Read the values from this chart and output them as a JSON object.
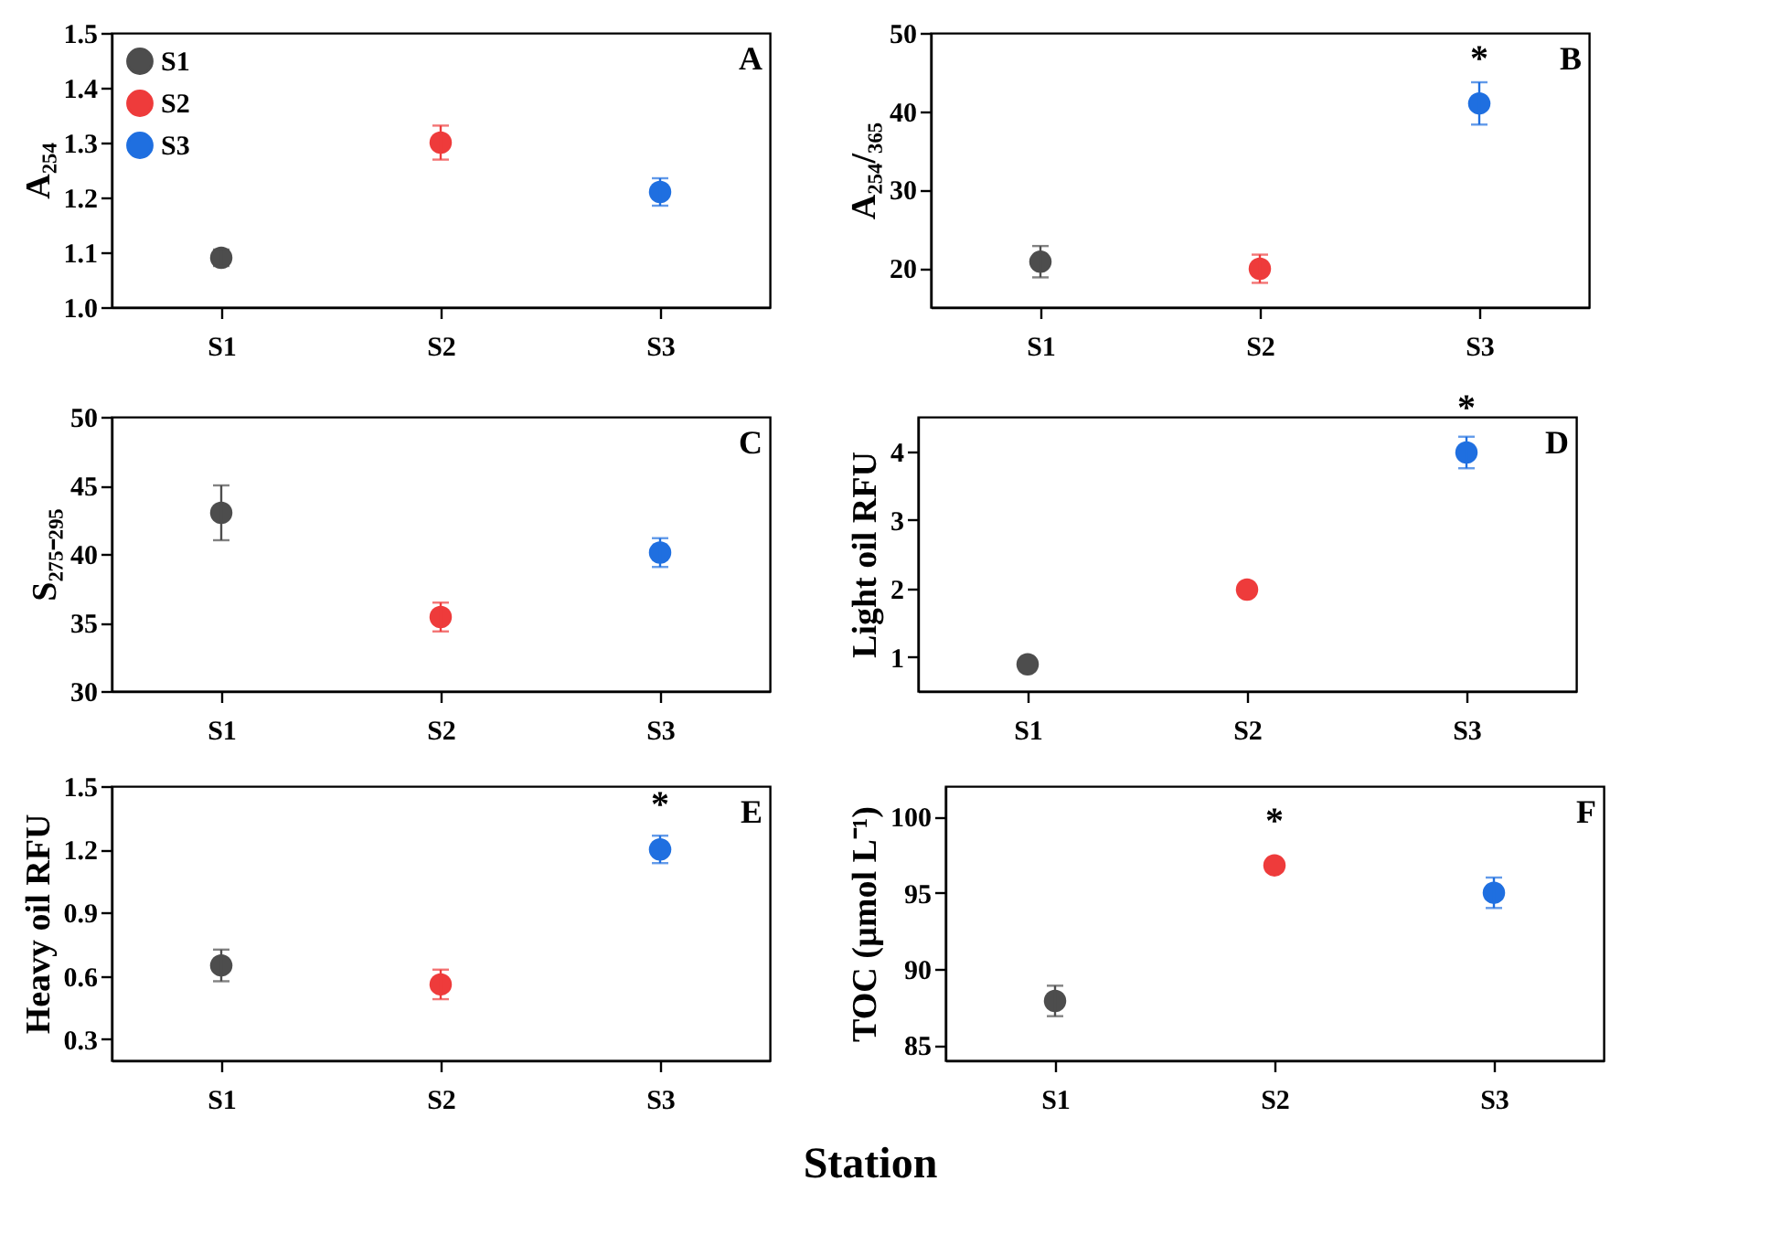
{
  "chart_data": [
    {
      "type": "scatter",
      "categories": [
        "S1",
        "S2",
        "S3"
      ],
      "ylabel": "A₂₅₄",
      "ylim": [
        1.0,
        1.5
      ],
      "yticks": [
        {
          "value": 1,
          "label": "1.0"
        },
        1.1,
        1.2,
        1.3,
        1.4,
        1.5
      ],
      "legend": "top left",
      "marker": "circle",
      "annotations": [
        "A"
      ],
      "series": [
        {
          "name": "S1",
          "color": "#4d4d4d",
          "values": [
            1.09,
            null,
            null
          ],
          "errors": [
            0.015,
            null,
            null
          ]
        },
        {
          "name": "S2",
          "color": "#ee3b3b",
          "values": [
            null,
            1.3,
            null
          ],
          "errors": [
            null,
            0.031,
            null
          ]
        },
        {
          "name": "S3",
          "color": "#1f6fe0",
          "values": [
            null,
            null,
            1.21
          ],
          "errors": [
            null,
            null,
            0.025
          ]
        }
      ]
    },
    {
      "type": "scatter",
      "categories": [
        "S1",
        "S2",
        "S3"
      ],
      "ylabel": "A₂₅₄/₃₆₅",
      "ylim": [
        15,
        50
      ],
      "yticks": [
        20,
        30,
        40,
        50
      ],
      "marker": "circle",
      "annotations": [
        "B",
        {
          "text": "*",
          "x": "S3",
          "y": 41.0
        }
      ],
      "series": [
        {
          "color": "#4d4d4d",
          "values": [
            20.8,
            null,
            null
          ],
          "errors": [
            2.0,
            null,
            null
          ]
        },
        {
          "color": "#ee3b3b",
          "values": [
            null,
            19.9,
            null
          ],
          "errors": [
            null,
            1.8,
            null
          ]
        },
        {
          "color": "#1f6fe0",
          "values": [
            null,
            null,
            41.0
          ],
          "errors": [
            null,
            null,
            2.7
          ]
        }
      ]
    },
    {
      "type": "scatter",
      "categories": [
        "S1",
        "S2",
        "S3"
      ],
      "ylabel": "S₂₇₅₋₂₉₅",
      "ylim": [
        30,
        50
      ],
      "yticks": [
        30,
        35,
        40,
        45,
        50
      ],
      "marker": "circle",
      "annotations": [
        "C"
      ],
      "series": [
        {
          "color": "#4d4d4d",
          "values": [
            43.0,
            null,
            null
          ],
          "errors": [
            2.0,
            null,
            null
          ]
        },
        {
          "color": "#ee3b3b",
          "values": [
            null,
            35.4,
            null
          ],
          "errors": [
            null,
            1.05,
            null
          ]
        },
        {
          "color": "#1f6fe0",
          "values": [
            null,
            null,
            40.1
          ],
          "errors": [
            null,
            null,
            1.05
          ]
        }
      ]
    },
    {
      "type": "scatter",
      "categories": [
        "S1",
        "S2",
        "S3"
      ],
      "ylabel": "Light oil RFU",
      "ylim": [
        0.5,
        4.5
      ],
      "yticks": [
        1,
        2,
        3,
        4
      ],
      "marker": "circle",
      "annotations": [
        "D",
        {
          "text": "*",
          "x": "S3",
          "y": 3.98
        }
      ],
      "series": [
        {
          "color": "#4d4d4d",
          "values": [
            0.89,
            null,
            null
          ]
        },
        {
          "color": "#ee3b3b",
          "values": [
            null,
            1.98,
            null
          ]
        },
        {
          "color": "#1f6fe0",
          "values": [
            null,
            null,
            3.98
          ],
          "errors": [
            null,
            null,
            0.23
          ]
        }
      ]
    },
    {
      "type": "scatter",
      "categories": [
        "S1",
        "S2",
        "S3"
      ],
      "ylabel": "Heavy oil RFU",
      "xlabel": "Station",
      "ylim": [
        0.2,
        1.5
      ],
      "yticks": [
        0.3,
        0.6,
        0.9,
        1.2,
        1.5
      ],
      "marker": "circle",
      "annotations": [
        "E",
        {
          "text": "*",
          "x": "S3",
          "y": 1.2
        }
      ],
      "series": [
        {
          "color": "#4d4d4d",
          "values": [
            0.65,
            null,
            null
          ],
          "errors": [
            0.075,
            null,
            null
          ]
        },
        {
          "color": "#ee3b3b",
          "values": [
            null,
            0.56,
            null
          ],
          "errors": [
            null,
            0.07,
            null
          ]
        },
        {
          "color": "#1f6fe0",
          "values": [
            null,
            null,
            1.2
          ],
          "errors": [
            null,
            null,
            0.065
          ]
        }
      ]
    },
    {
      "type": "scatter",
      "categories": [
        "S1",
        "S2",
        "S3"
      ],
      "ylabel": "TOC (µmol L⁻¹)",
      "ylim": [
        84,
        102
      ],
      "yticks": [
        85,
        90,
        95,
        100
      ],
      "marker": "circle",
      "annotations": [
        "F",
        {
          "text": "*",
          "x": "S2",
          "y": 96.8
        }
      ],
      "series": [
        {
          "color": "#4d4d4d",
          "values": [
            87.9,
            null,
            null
          ],
          "errors": [
            1.0,
            null,
            null
          ]
        },
        {
          "color": "#ee3b3b",
          "values": [
            null,
            96.8,
            null
          ]
        },
        {
          "color": "#1f6fe0",
          "values": [
            null,
            null,
            95.0
          ],
          "errors": [
            null,
            null,
            1.0
          ]
        }
      ]
    }
  ]
}
